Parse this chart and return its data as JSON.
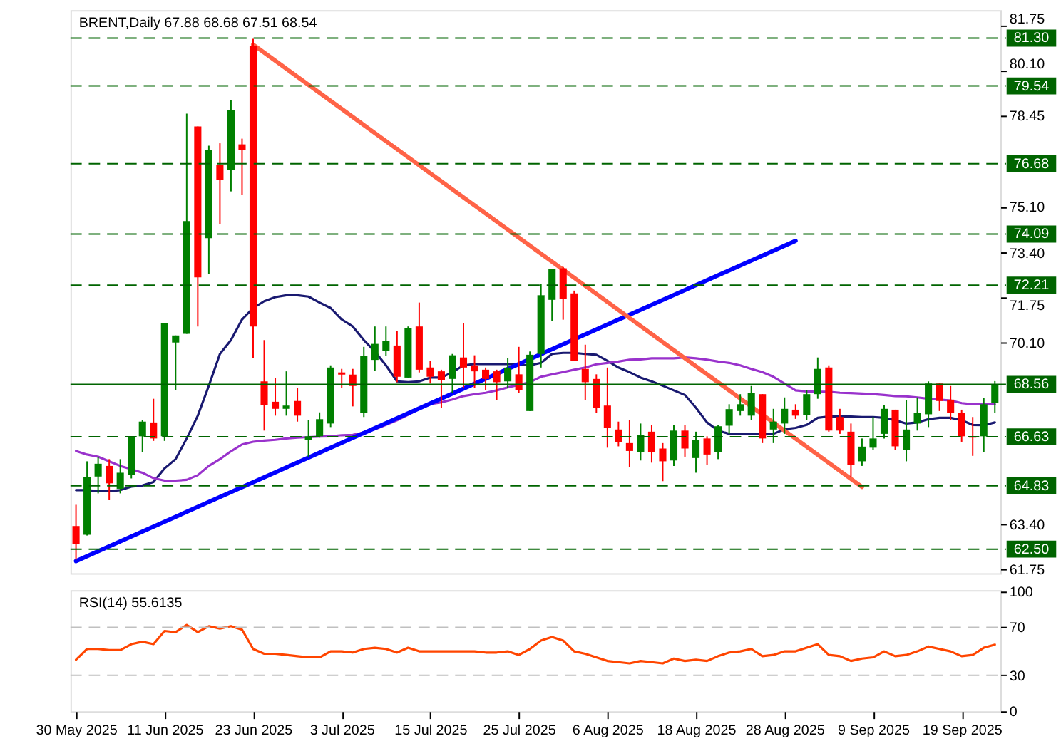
{
  "chart_data": [
    {
      "type": "candlestick",
      "title": "BRENT,Daily 67.88 68.68 67.51 68.54",
      "categories": [
        null,
        null,
        null,
        null,
        null,
        null,
        null,
        null,
        null,
        null,
        null,
        null,
        null,
        null,
        null,
        null,
        null,
        null,
        null,
        null,
        null,
        null,
        null,
        null,
        null,
        null,
        null,
        null,
        null,
        null,
        null,
        null,
        null,
        null,
        null,
        null,
        null,
        null,
        null,
        null,
        null,
        null,
        null,
        null,
        null,
        null,
        null,
        null,
        null,
        null,
        null,
        null,
        null,
        null,
        null,
        null,
        null,
        null,
        null,
        null,
        null,
        null,
        null,
        null,
        null,
        null,
        null,
        null,
        null,
        null,
        null,
        null,
        null,
        null,
        null,
        null,
        null,
        null,
        null,
        null,
        null,
        null,
        null,
        null
      ],
      "ohlc": [
        [
          63.35,
          64.13,
          62.11,
          62.7
        ],
        [
          63.03,
          65.73,
          63.0,
          65.14
        ],
        [
          65.17,
          65.9,
          64.55,
          65.64
        ],
        [
          65.56,
          65.81,
          64.3,
          64.92
        ],
        [
          64.72,
          65.81,
          64.55,
          65.31
        ],
        [
          65.22,
          66.65,
          65.1,
          66.65
        ],
        [
          66.65,
          67.24,
          66.06,
          67.19
        ],
        [
          67.16,
          68.03,
          66.48,
          66.57
        ],
        [
          66.65,
          70.81,
          66.48,
          70.81
        ],
        [
          70.1,
          70.36,
          68.34,
          70.36
        ],
        [
          70.42,
          78.52,
          70.42,
          74.57
        ],
        [
          78.05,
          78.05,
          70.69,
          72.5
        ],
        [
          73.94,
          77.34,
          72.63,
          77.18
        ],
        [
          76.64,
          77.43,
          74.45,
          76.08
        ],
        [
          76.45,
          79.03,
          75.66,
          78.64
        ],
        [
          77.39,
          77.6,
          75.53,
          77.18
        ],
        [
          81.0,
          81.27,
          69.52,
          70.69
        ],
        [
          68.67,
          70.19,
          66.86,
          67.8
        ],
        [
          67.92,
          68.79,
          67.41,
          67.66
        ],
        [
          67.66,
          69.04,
          67.41,
          67.78
        ],
        [
          67.95,
          68.42,
          67.19,
          67.41
        ],
        [
          66.52,
          67.24,
          65.9,
          66.65
        ],
        [
          66.65,
          67.53,
          66.6,
          67.28
        ],
        [
          67.12,
          69.26,
          66.99,
          69.18
        ],
        [
          69.0,
          69.13,
          68.42,
          68.92
        ],
        [
          68.92,
          69.13,
          67.75,
          68.5
        ],
        [
          67.5,
          69.94,
          67.36,
          69.6
        ],
        [
          69.46,
          70.69,
          69.06,
          70.05
        ],
        [
          69.8,
          70.69,
          69.6,
          70.15
        ],
        [
          69.99,
          70.53,
          68.64,
          68.84
        ],
        [
          68.81,
          70.69,
          68.81,
          70.64
        ],
        [
          70.69,
          71.57,
          69.0,
          69.1
        ],
        [
          69.18,
          69.43,
          68.59,
          68.84
        ],
        [
          69.04,
          69.1,
          67.7,
          68.71
        ],
        [
          68.76,
          69.68,
          68.25,
          69.63
        ],
        [
          69.55,
          70.81,
          68.44,
          69.18
        ],
        [
          69.26,
          69.63,
          68.42,
          69.04
        ],
        [
          69.1,
          69.18,
          68.34,
          68.76
        ],
        [
          69.04,
          69.1,
          67.99,
          68.64
        ],
        [
          68.67,
          69.52,
          68.42,
          69.18
        ],
        [
          68.93,
          69.94,
          68.25,
          68.34
        ],
        [
          67.58,
          69.77,
          67.58,
          69.65
        ],
        [
          69.68,
          72.25,
          69.18,
          71.84
        ],
        [
          71.67,
          72.8,
          70.9,
          72.8
        ],
        [
          72.83,
          72.88,
          70.94,
          71.7
        ],
        [
          71.91,
          72.01,
          69.43,
          69.43
        ],
        [
          69.13,
          70.02,
          67.97,
          68.64
        ],
        [
          68.76,
          68.93,
          67.5,
          67.7
        ],
        [
          67.78,
          69.18,
          66.23,
          66.95
        ],
        [
          66.9,
          67.19,
          66.28,
          66.43
        ],
        [
          66.4,
          67.24,
          65.53,
          66.11
        ],
        [
          66.06,
          67.12,
          65.76,
          66.7
        ],
        [
          66.82,
          67.07,
          65.68,
          66.06
        ],
        [
          66.2,
          66.4,
          65.0,
          65.73
        ],
        [
          65.76,
          67.07,
          65.56,
          66.86
        ],
        [
          66.86,
          67.07,
          65.9,
          66.2
        ],
        [
          65.85,
          66.82,
          65.31,
          66.52
        ],
        [
          66.57,
          66.65,
          65.61,
          65.98
        ],
        [
          66.06,
          67.07,
          65.81,
          67.02
        ],
        [
          67.04,
          67.83,
          66.74,
          67.65
        ],
        [
          67.58,
          68.2,
          67.41,
          67.83
        ],
        [
          67.41,
          68.5,
          67.24,
          68.25
        ],
        [
          68.2,
          68.2,
          66.4,
          66.57
        ],
        [
          66.9,
          67.66,
          66.4,
          67.19
        ],
        [
          67.12,
          68.08,
          66.74,
          67.66
        ],
        [
          67.63,
          67.83,
          67.29,
          67.41
        ],
        [
          67.44,
          68.34,
          67.24,
          68.2
        ],
        [
          68.2,
          69.55,
          68.03,
          69.13
        ],
        [
          69.18,
          69.26,
          66.82,
          66.86
        ],
        [
          67.36,
          67.66,
          66.74,
          66.86
        ],
        [
          66.82,
          67.12,
          65.14,
          65.59
        ],
        [
          65.73,
          66.57,
          65.56,
          66.27
        ],
        [
          66.23,
          67.36,
          66.15,
          66.57
        ],
        [
          66.74,
          67.8,
          66.57,
          67.66
        ],
        [
          67.63,
          67.63,
          66.15,
          66.28
        ],
        [
          66.15,
          67.99,
          65.73,
          66.9
        ],
        [
          67.12,
          68.08,
          66.86,
          67.51
        ],
        [
          67.46,
          68.67,
          66.99,
          68.59
        ],
        [
          68.59,
          68.59,
          67.58,
          67.95
        ],
        [
          68.0,
          68.5,
          67.24,
          67.51
        ],
        [
          67.5,
          67.63,
          66.45,
          66.65
        ],
        [
          66.65,
          67.36,
          65.93,
          66.6
        ],
        [
          66.65,
          68.05,
          66.06,
          67.83
        ],
        [
          67.88,
          68.68,
          67.51,
          68.54
        ]
      ],
      "colors": [
        "#ff0000",
        "#008000",
        "#008000",
        "#ff0000",
        "#008000",
        "#008000",
        "#008000",
        "#ff0000",
        "#008000",
        "#008000",
        "#008000",
        "#ff0000",
        "#008000",
        "#ff0000",
        "#008000",
        "#ff0000",
        "#ff0000",
        "#ff0000",
        "#ff0000",
        "#008000",
        "#ff0000",
        "#008000",
        "#008000",
        "#008000",
        "#ff0000",
        "#ff0000",
        "#008000",
        "#008000",
        "#008000",
        "#ff0000",
        "#008000",
        "#ff0000",
        "#ff0000",
        "#ff0000",
        "#008000",
        "#ff0000",
        "#ff0000",
        "#ff0000",
        "#ff0000",
        "#008000",
        "#ff0000",
        "#008000",
        "#008000",
        "#008000",
        "#ff0000",
        "#ff0000",
        "#ff0000",
        "#ff0000",
        "#ff0000",
        "#ff0000",
        "#ff0000",
        "#008000",
        "#ff0000",
        "#ff0000",
        "#008000",
        "#ff0000",
        "#008000",
        "#ff0000",
        "#008000",
        "#008000",
        "#008000",
        "#008000",
        "#ff0000",
        "#008000",
        "#008000",
        "#ff0000",
        "#008000",
        "#008000",
        "#ff0000",
        "#ff0000",
        "#ff0000",
        "#008000",
        "#008000",
        "#008000",
        "#ff0000",
        "#008000",
        "#008000",
        "#008000",
        "#ff0000",
        "#ff0000",
        "#ff0000",
        "#ff0000",
        "#008000",
        "#008000"
      ],
      "series": [
        {
          "type": "line",
          "color": "#191970",
          "values": [
            64.67,
            64.67,
            64.63,
            64.63,
            64.67,
            64.8,
            64.84,
            64.97,
            65.47,
            65.81,
            66.57,
            67.41,
            68.51,
            69.68,
            70.19,
            70.95,
            71.37,
            71.62,
            71.77,
            71.84,
            71.84,
            71.79,
            71.57,
            71.37,
            70.95,
            70.69,
            70.19,
            69.77,
            69.26,
            68.67,
            68.64,
            68.67,
            68.81,
            68.81,
            69.01,
            69.26,
            69.31,
            69.31,
            69.31,
            69.31,
            69.28,
            69.26,
            69.35,
            69.68,
            69.72,
            69.72,
            69.68,
            69.65,
            69.43,
            69.18,
            69.01,
            68.81,
            68.67,
            68.51,
            68.34,
            68.17,
            67.7,
            67.16,
            66.86,
            66.74,
            66.74,
            66.74,
            66.74,
            66.74,
            66.91,
            66.96,
            67.07,
            67.33,
            67.38,
            67.38,
            67.38,
            67.36,
            67.36,
            67.33,
            67.24,
            67.12,
            67.16,
            67.28,
            67.33,
            67.33,
            67.24,
            67.07,
            67.06,
            67.16
          ]
        },
        {
          "type": "line",
          "color": "#9932cc",
          "values": [
            66.11,
            65.98,
            65.9,
            65.73,
            65.56,
            65.44,
            65.31,
            65.11,
            65.02,
            65.02,
            65.05,
            65.22,
            65.56,
            65.81,
            66.1,
            66.35,
            66.45,
            66.49,
            66.52,
            66.57,
            66.6,
            66.62,
            66.64,
            66.65,
            66.69,
            66.7,
            66.79,
            66.91,
            67.07,
            67.24,
            67.44,
            67.66,
            67.83,
            67.9,
            68.0,
            68.13,
            68.2,
            68.25,
            68.34,
            68.45,
            68.54,
            68.64,
            68.84,
            68.93,
            69.01,
            69.1,
            69.18,
            69.3,
            69.35,
            69.4,
            69.47,
            69.48,
            69.52,
            69.52,
            69.52,
            69.55,
            69.52,
            69.47,
            69.4,
            69.35,
            69.26,
            69.13,
            69.01,
            68.84,
            68.59,
            68.34,
            68.3,
            68.29,
            68.29,
            68.25,
            68.24,
            68.22,
            68.2,
            68.17,
            68.13,
            68.12,
            68.08,
            68.03,
            68.0,
            67.97,
            67.87,
            67.83,
            67.83,
            67.83
          ]
        },
        {
          "type": "line",
          "color": "#0000ff",
          "values": [
            62.06,
            null,
            null,
            null,
            null,
            null,
            null,
            null,
            null,
            null,
            null,
            null,
            null,
            null,
            null,
            null,
            null,
            null,
            null,
            null,
            null,
            null,
            null,
            null,
            null,
            null,
            null,
            null,
            null,
            null,
            null,
            null,
            null,
            null,
            null,
            null,
            null,
            null,
            null,
            null,
            null,
            null,
            null,
            null,
            null,
            null,
            null,
            null,
            null,
            null,
            null,
            null,
            null,
            null,
            null,
            null,
            null,
            null,
            null,
            null,
            null,
            null,
            null,
            null,
            null,
            73.84,
            null,
            null,
            null,
            null,
            null,
            null,
            null,
            null,
            null,
            null,
            null,
            null,
            null,
            null,
            null,
            null,
            null,
            null
          ]
        },
        {
          "type": "line",
          "color": "#ff6347",
          "values": [
            null,
            null,
            null,
            null,
            null,
            null,
            null,
            null,
            null,
            null,
            null,
            null,
            null,
            null,
            null,
            null,
            81.06,
            null,
            null,
            null,
            null,
            null,
            null,
            null,
            null,
            null,
            null,
            null,
            null,
            null,
            null,
            null,
            null,
            null,
            null,
            null,
            null,
            null,
            null,
            null,
            null,
            null,
            null,
            null,
            null,
            null,
            null,
            null,
            null,
            null,
            null,
            null,
            null,
            null,
            null,
            null,
            null,
            null,
            null,
            null,
            null,
            null,
            null,
            null,
            null,
            null,
            null,
            null,
            null,
            null,
            null,
            64.79,
            null,
            null,
            null,
            null,
            null,
            null,
            null,
            null,
            null,
            null,
            null,
            null
          ]
        }
      ],
      "ylim": [
        61.61,
        82.33
      ],
      "yticks": [
        81.75,
        {
          "value": 80.1,
          "label": "80.10"
        },
        78.45,
        {
          "value": 75.1,
          "label": "75.10"
        },
        {
          "value": 73.4,
          "label": "73.40"
        },
        71.75,
        {
          "value": 70.1,
          "label": "70.10"
        },
        {
          "value": 63.4,
          "label": "63.40"
        },
        61.75
      ],
      "ref_lines": [
        {
          "axis": "y",
          "value": 81.3,
          "label": "81.30",
          "color": "#006400",
          "line_style": "dashed"
        },
        {
          "axis": "y",
          "value": 79.54,
          "label": "79.54",
          "color": "#006400",
          "line_style": "dashed"
        },
        {
          "axis": "y",
          "value": 76.68,
          "label": "76.68",
          "color": "#006400",
          "line_style": "dashed"
        },
        {
          "axis": "y",
          "value": 74.09,
          "label": "74.09",
          "color": "#006400",
          "line_style": "dashed"
        },
        {
          "axis": "y",
          "value": 72.21,
          "label": "72.21",
          "color": "#006400",
          "line_style": "dashed"
        },
        {
          "axis": "y",
          "value": 68.56,
          "label": "68.56",
          "color": "#006400",
          "line_style": "solid"
        },
        {
          "axis": "y",
          "value": 66.63,
          "label": "66.63",
          "color": "#006400",
          "line_style": "dashed"
        },
        {
          "axis": "y",
          "value": 64.83,
          "label": "64.83",
          "color": "#006400",
          "line_style": "dashed"
        },
        {
          "axis": "y",
          "value": 62.5,
          "label": "62.50",
          "color": "#006400",
          "line_style": "dashed"
        }
      ],
      "grid": false,
      "tick_labels": "y"
    },
    {
      "type": "line",
      "title": "RSI(14) 55.6135",
      "categories": [
        "30 May 2025",
        null,
        null,
        null,
        null,
        null,
        null,
        null,
        "11 Jun 2025",
        null,
        null,
        null,
        null,
        null,
        null,
        null,
        "23 Jun 2025",
        null,
        null,
        null,
        null,
        null,
        null,
        null,
        "3 Jul 2025",
        null,
        null,
        null,
        null,
        null,
        null,
        null,
        "15 Jul 2025",
        null,
        null,
        null,
        null,
        null,
        null,
        null,
        "25 Jul 2025",
        null,
        null,
        null,
        null,
        null,
        null,
        null,
        "6 Aug 2025",
        null,
        null,
        null,
        null,
        null,
        null,
        null,
        "18 Aug 2025",
        null,
        null,
        null,
        null,
        null,
        null,
        null,
        "28 Aug 2025",
        null,
        null,
        null,
        null,
        null,
        null,
        null,
        "9 Sep 2025",
        null,
        null,
        null,
        null,
        null,
        null,
        null,
        "19 Sep 2025",
        null,
        null,
        null
      ],
      "series": [
        {
          "type": "line",
          "color": "#ff4500",
          "values": [
            43,
            52,
            52,
            51,
            51,
            56,
            58,
            56,
            67,
            66,
            72,
            66,
            71,
            69,
            71,
            68,
            52,
            48,
            48,
            47,
            46,
            45,
            45,
            50,
            50,
            49,
            52,
            53,
            52,
            49,
            53,
            50,
            50,
            50,
            50,
            50,
            50,
            49,
            49,
            50,
            47,
            52,
            59,
            62,
            59,
            50,
            48,
            45,
            42,
            41,
            40,
            42,
            41,
            40,
            44,
            42,
            43,
            42,
            46,
            49,
            50,
            52,
            46,
            47,
            50,
            50,
            53,
            56,
            47,
            46,
            42,
            44,
            45,
            50,
            46,
            47,
            50,
            54,
            52,
            50,
            46,
            47,
            53,
            55.6
          ]
        }
      ],
      "ylim": [
        0,
        101
      ],
      "yticks": [
        100,
        70,
        30,
        0
      ],
      "ref_lines": [
        {
          "axis": "y",
          "value": 70,
          "color": "#c0c0c0",
          "line_style": "dashed"
        },
        {
          "axis": "y",
          "value": 30,
          "color": "#c0c0c0",
          "line_style": "dashed"
        }
      ],
      "grid": false
    }
  ]
}
